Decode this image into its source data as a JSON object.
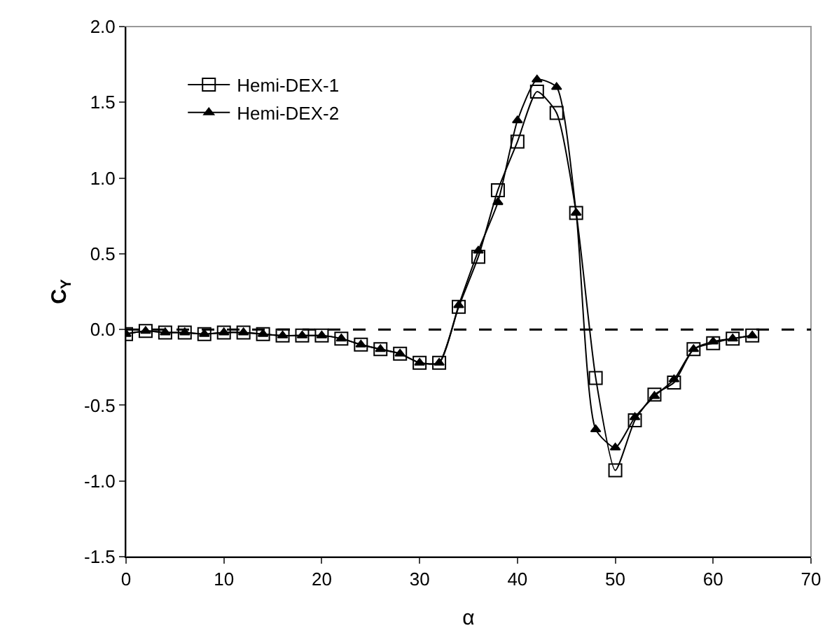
{
  "chart_data": {
    "type": "line",
    "xlabel": "α",
    "ylabel": "C$_{Y}$",
    "x": [
      0,
      2,
      4,
      6,
      8,
      10,
      12,
      14,
      16,
      18,
      20,
      22,
      24,
      26,
      28,
      30,
      32,
      34,
      36,
      38,
      40,
      42,
      44,
      46,
      48,
      50,
      52,
      54,
      56,
      58,
      60,
      62,
      64
    ],
    "series": [
      {
        "name": "Hemi-DEX-1",
        "color": "#000000",
        "marker": "square",
        "values": [
          -0.03,
          -0.01,
          -0.02,
          -0.02,
          -0.03,
          -0.02,
          -0.02,
          -0.03,
          -0.04,
          -0.04,
          -0.04,
          -0.06,
          -0.1,
          -0.13,
          -0.16,
          -0.22,
          -0.22,
          0.15,
          0.48,
          0.92,
          1.24,
          1.57,
          1.43,
          0.77,
          -0.32,
          -0.93,
          -0.6,
          -0.43,
          -0.35,
          -0.13,
          -0.09,
          -0.06,
          -0.04
        ]
      },
      {
        "name": "Hemi-DEX-2",
        "color": "#000000",
        "marker": "triangle",
        "values": [
          -0.03,
          -0.01,
          -0.02,
          -0.02,
          -0.03,
          -0.02,
          -0.02,
          -0.03,
          -0.04,
          -0.04,
          -0.04,
          -0.06,
          -0.1,
          -0.13,
          -0.16,
          -0.22,
          -0.22,
          0.16,
          0.52,
          0.84,
          1.38,
          1.65,
          1.6,
          0.77,
          -0.66,
          -0.78,
          -0.58,
          -0.44,
          -0.33,
          -0.13,
          -0.08,
          -0.06,
          -0.04
        ]
      }
    ],
    "xlim": [
      0,
      70
    ],
    "xticks": [
      0,
      10,
      20,
      30,
      40,
      50,
      60,
      70
    ],
    "ylim": [
      -1.5,
      2.0
    ],
    "yticks": [
      {
        "value": -1.5,
        "label": "-1.5"
      },
      {
        "value": -1.0,
        "label": "-1.0"
      },
      {
        "value": -0.5,
        "label": "-0.5"
      },
      {
        "value": 0,
        "label": "0.0"
      },
      {
        "value": 0.5,
        "label": "0.5"
      },
      {
        "value": 1.0,
        "label": "1.0"
      },
      {
        "value": 1.5,
        "label": "1.5"
      },
      {
        "value": 2.0,
        "label": "2.0"
      }
    ],
    "ref_lines": [
      {
        "axis": "y",
        "value": 0,
        "label": null,
        "line_style": "dashed",
        "color": "#000000"
      }
    ],
    "grid": false,
    "legend": "top left",
    "line_style": "solid"
  }
}
